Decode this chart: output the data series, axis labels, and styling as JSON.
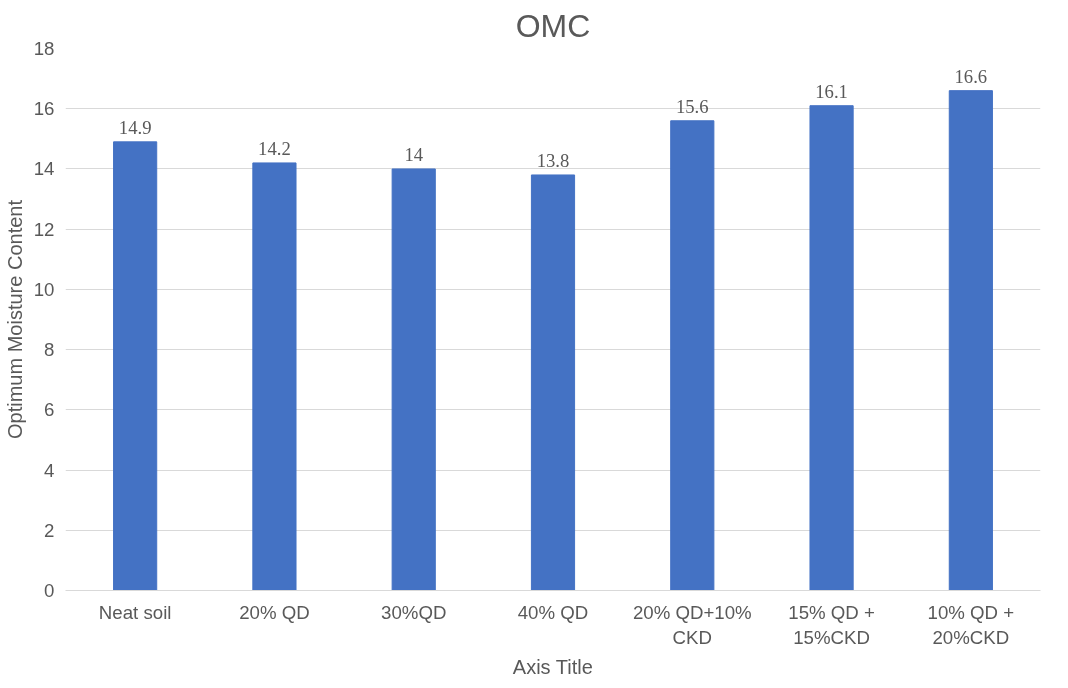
{
  "chart_data": {
    "type": "bar",
    "title": "OMC",
    "xlabel": "Axis Title",
    "ylabel": "Optimum Moisture Content",
    "categories": [
      "Neat soil",
      "20% QD",
      "30%QD",
      "40% QD",
      "20% QD+10% CKD",
      "15% QD + 15%CKD",
      "10% QD + 20%CKD"
    ],
    "values": [
      14.9,
      14.2,
      14,
      13.8,
      15.6,
      16.1,
      16.6
    ],
    "color": "#4472c4",
    "ylim": [
      0,
      18
    ],
    "yticks": [
      0,
      2,
      4,
      6,
      8,
      10,
      12,
      14,
      16,
      18
    ],
    "grid": "y",
    "data_labels": true
  }
}
